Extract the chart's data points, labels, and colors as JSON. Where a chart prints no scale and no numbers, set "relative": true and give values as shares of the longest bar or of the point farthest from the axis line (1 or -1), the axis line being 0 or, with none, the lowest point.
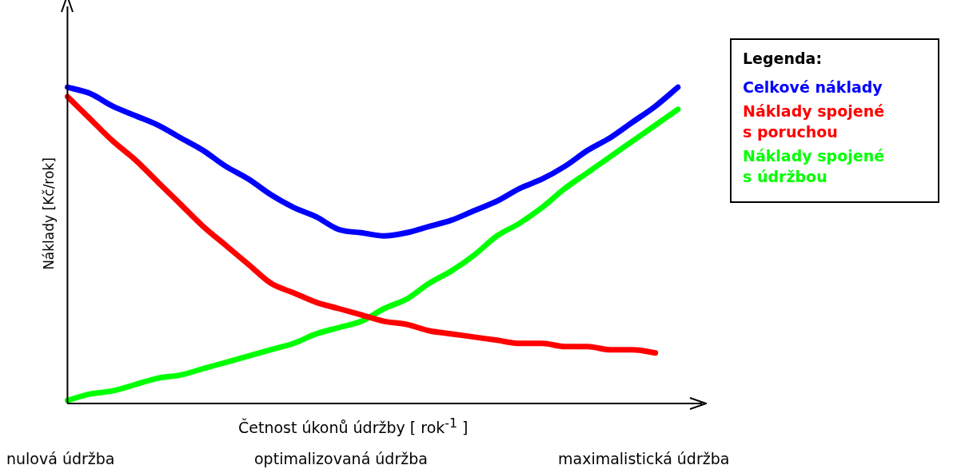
{
  "chart_data": {
    "type": "line",
    "relative": true,
    "ylabel": "Náklady [Kč/rok]",
    "xlabel": "Četnost úkonů údržby [ rok$^{-1}$ ]",
    "legend_title": "Legenda:",
    "legend": "right",
    "marker": "none",
    "grid": false,
    "categories": [
      null,
      null,
      null,
      null,
      null,
      null,
      null,
      null,
      null,
      null,
      null,
      null,
      null,
      null,
      null,
      null,
      null,
      null,
      null,
      null,
      null,
      null,
      null,
      null,
      null,
      null,
      null,
      null
    ],
    "series": [
      {
        "name": "Celkové náklady",
        "color": "#0000ff",
        "values": [
          1.0,
          0.98,
          0.94,
          0.91,
          0.88,
          0.84,
          0.8,
          0.75,
          0.71,
          0.66,
          0.62,
          0.59,
          0.55,
          0.54,
          0.53,
          0.54,
          0.56,
          0.58,
          0.61,
          0.64,
          0.68,
          0.71,
          0.75,
          0.8,
          0.84,
          0.89,
          0.94,
          1.0
        ]
      },
      {
        "name": "Náklady spojené s poruchou",
        "color": "#ff0000",
        "values": [
          0.97,
          0.9,
          0.83,
          0.77,
          0.7,
          0.63,
          0.56,
          0.5,
          0.44,
          0.38,
          0.35,
          0.32,
          0.3,
          0.28,
          0.26,
          0.25,
          0.23,
          0.22,
          0.21,
          0.2,
          0.19,
          0.19,
          0.18,
          0.18,
          0.17,
          0.17,
          0.16,
          null
        ]
      },
      {
        "name": "Náklady spojené s údržbou",
        "color": "#00ff00",
        "values": [
          0.01,
          0.03,
          0.04,
          0.06,
          0.08,
          0.09,
          0.11,
          0.13,
          0.15,
          0.17,
          0.19,
          0.22,
          0.24,
          0.26,
          0.3,
          0.33,
          0.38,
          0.42,
          0.47,
          0.53,
          0.57,
          0.62,
          0.68,
          0.73,
          0.78,
          0.83,
          0.88,
          0.93
        ]
      }
    ],
    "annotations": [
      "nulová údržba",
      "optimalizovaná údržba",
      "maximalistická údržba"
    ]
  }
}
